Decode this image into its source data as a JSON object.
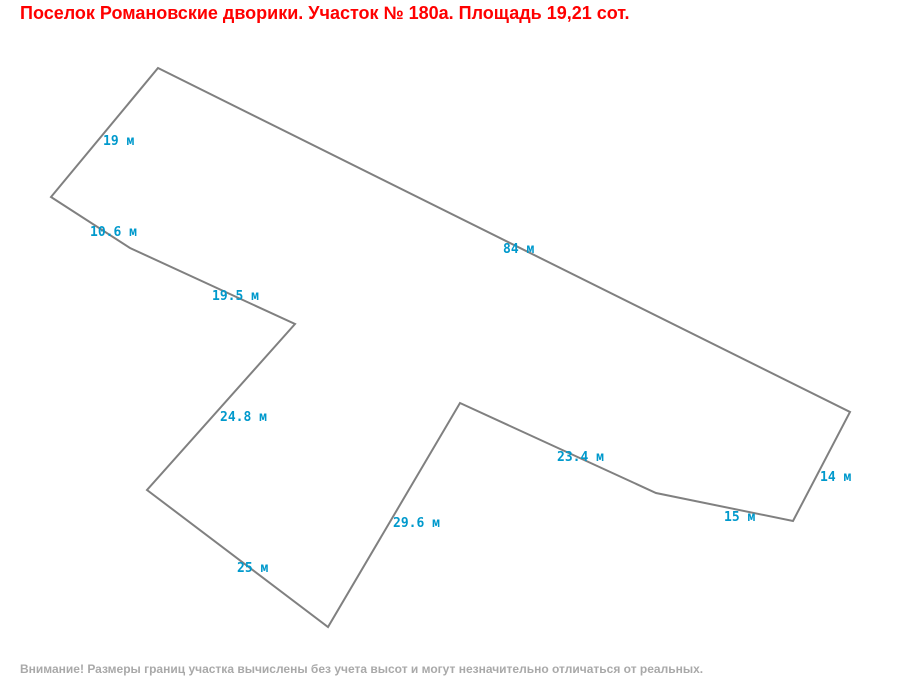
{
  "title": "Поселок Романовские дворики. Участок № 180а. Площадь 19,21 сот.",
  "note": "Внимание! Размеры границ участка вычислены без учета высот и могут незначительно отличаться от реальных.",
  "colors": {
    "title": "#ff0000",
    "outline": "#808080",
    "labels": "#0099cc",
    "note": "#a9a9a9"
  },
  "edges": [
    {
      "label": "84 м"
    },
    {
      "label": "14 м"
    },
    {
      "label": "15 м"
    },
    {
      "label": "23.4 м"
    },
    {
      "label": "29.6 м"
    },
    {
      "label": "25 м"
    },
    {
      "label": "24.8 м"
    },
    {
      "label": "19.5 м"
    },
    {
      "label": "10.6 м"
    },
    {
      "label": "19 м"
    }
  ]
}
